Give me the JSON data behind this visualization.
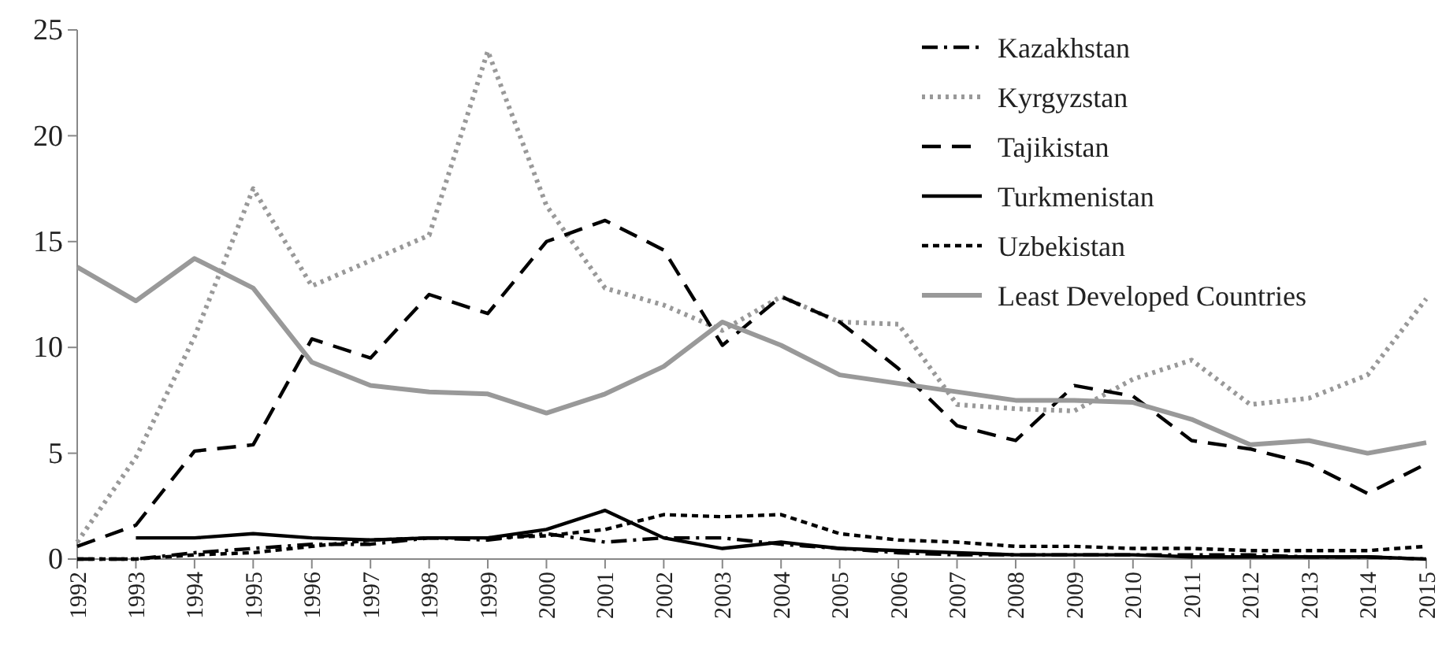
{
  "chart_data": {
    "type": "line",
    "categories": [
      "1992",
      "1993",
      "1994",
      "1995",
      "1996",
      "1997",
      "1998",
      "1999",
      "2000",
      "2001",
      "2002",
      "2003",
      "2004",
      "2005",
      "2006",
      "2007",
      "2008",
      "2009",
      "2010",
      "2011",
      "2012",
      "2013",
      "2014",
      "2015"
    ],
    "ylim": [
      0,
      25
    ],
    "yticks": [
      0,
      5,
      10,
      15,
      20,
      25
    ],
    "grid": false,
    "legend": "top right",
    "marker": "none",
    "series": [
      {
        "name": "Kazakhstan",
        "color": "#000000",
        "line_style": "dashdot",
        "values": [
          0,
          0,
          0.3,
          0.5,
          0.7,
          0.7,
          1.0,
          0.9,
          1.2,
          0.8,
          1.0,
          1.0,
          0.7,
          0.5,
          0.3,
          0.2,
          0.2,
          0.2,
          0.2,
          0.2,
          0.2,
          0.1,
          0.1,
          0.0
        ]
      },
      {
        "name": "Kyrgyzstan",
        "color": "#999999",
        "line_style": "dotted",
        "values": [
          0.8,
          4.8,
          10.5,
          17.5,
          12.9,
          14.1,
          15.3,
          24.0,
          16.7,
          12.8,
          12.0,
          10.8,
          12.4,
          11.2,
          11.1,
          7.3,
          7.1,
          7.0,
          8.5,
          9.4,
          7.3,
          7.6,
          8.7,
          12.3
        ]
      },
      {
        "name": "Tajikistan",
        "color": "#000000",
        "line_style": "longdashed",
        "values": [
          0.6,
          1.6,
          5.1,
          5.4,
          10.4,
          9.5,
          12.5,
          11.6,
          15.0,
          16.0,
          14.6,
          10.1,
          12.4,
          11.2,
          9.0,
          6.3,
          5.6,
          8.2,
          7.7,
          5.6,
          5.2,
          4.5,
          3.1,
          4.5
        ]
      },
      {
        "name": "Turkmenistan",
        "color": "#000000",
        "line_style": "solid",
        "values": [
          null,
          1.0,
          1.0,
          1.2,
          1.0,
          0.9,
          1.0,
          1.0,
          1.4,
          2.3,
          1.0,
          0.5,
          0.8,
          0.5,
          0.4,
          0.3,
          0.2,
          0.2,
          0.2,
          0.1,
          0.1,
          0.1,
          0.1,
          0.0
        ]
      },
      {
        "name": "Uzbekistan",
        "color": "#000000",
        "line_style": "dashed",
        "values": [
          0,
          0,
          0.2,
          0.3,
          0.6,
          0.9,
          1.0,
          1.0,
          1.1,
          1.4,
          2.1,
          2.0,
          2.1,
          1.2,
          0.9,
          0.8,
          0.6,
          0.6,
          0.5,
          0.5,
          0.4,
          0.4,
          0.4,
          0.6
        ]
      },
      {
        "name": "Least Developed Countries",
        "color": "#999999",
        "line_style": "solid",
        "values": [
          13.8,
          12.2,
          14.2,
          12.8,
          9.3,
          8.2,
          7.9,
          7.8,
          6.9,
          7.8,
          9.1,
          11.2,
          10.1,
          8.7,
          8.3,
          7.9,
          7.5,
          7.5,
          7.4,
          6.6,
          5.4,
          5.6,
          5.0,
          5.5
        ]
      }
    ]
  }
}
